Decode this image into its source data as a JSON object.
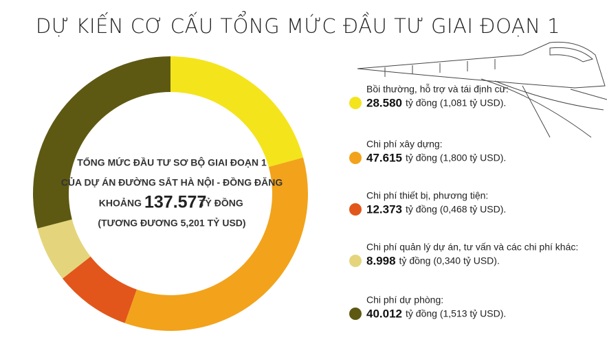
{
  "chart_data": {
    "type": "donut",
    "title": "DỰ KIẾN CƠ CẤU TỔNG MỨC ĐẦU TƯ GIAI ĐOẠN 1",
    "categories": [
      "Bồi thường, hỗ trợ và tái định cư:",
      "Chi phí xây dựng:",
      "Chi phí thiết bị, phương tiện:",
      "Chi phí quản lý dự án, tư vấn và các chi phí khác:",
      "Chi phí dự phòng:"
    ],
    "values": [
      28580,
      47615,
      12373,
      8998,
      40012
    ],
    "value_labels": [
      "28.580",
      "47.615",
      "12.373",
      "8.998",
      "40.012"
    ],
    "details": [
      "tỷ đồng (1,081 tỷ USD).",
      "tỷ đồng (1,800 tỷ USD).",
      "tỷ đồng (0,468 tỷ USD).",
      "tỷ đồng (0,340 tỷ USD).",
      "tỷ đồng (1,513 tỷ USD)."
    ],
    "colors": [
      "#f4e41c",
      "#f2a31b",
      "#e2561b",
      "#e4d57c",
      "#5d5912"
    ],
    "center": {
      "line1": "TỔNG MỨC ĐẦU TƯ SƠ BỘ GIAI ĐOẠN 1",
      "line2": "CỦA DỰ ÁN ĐƯỜNG SẮT HÀ NỘI - ĐỒNG ĐĂNG",
      "prefix": "KHOẢNG",
      "total": 137577,
      "total_label": "137.577",
      "suffix": "TỶ ĐỒNG",
      "line4": "(TƯƠNG ĐƯƠNG 5,201 TỶ USD)"
    }
  }
}
